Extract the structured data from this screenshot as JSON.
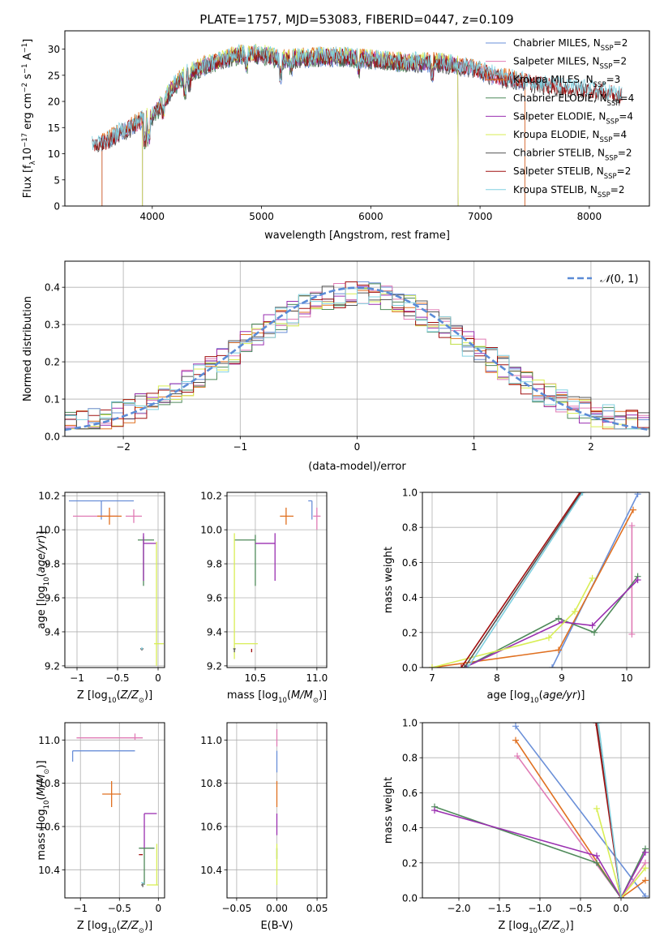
{
  "figure": {
    "title": "PLATE=1757, MJD=53083, FIBERID=0447, z=0.109"
  },
  "series": [
    {
      "key": "c_miles",
      "label": "Chabrier MILES, N",
      "sub": "SSP",
      "suffix": "=2",
      "color": "#6a8fd8"
    },
    {
      "key": "s_miles",
      "label": "Salpeter MILES, N",
      "sub": "SSP",
      "suffix": "=2",
      "color": "#e07bb5"
    },
    {
      "key": "k_miles",
      "label": "Kroupa MILES, N",
      "sub": "SSP",
      "suffix": "=3",
      "color": "#e07020"
    },
    {
      "key": "c_elodie",
      "label": "Chabrier ELODIE, N",
      "sub": "SSP",
      "suffix": "=4",
      "color": "#4f8a5a"
    },
    {
      "key": "s_elodie",
      "label": "Salpeter ELODIE, N",
      "sub": "SSP",
      "suffix": "=4",
      "color": "#9a2fb0"
    },
    {
      "key": "k_elodie",
      "label": "Kroupa ELODIE, N",
      "sub": "SSP",
      "suffix": "=4",
      "color": "#d8ee55"
    },
    {
      "key": "c_stelib",
      "label": "Chabrier STELIB, N",
      "sub": "SSP",
      "suffix": "=2",
      "color": "#555555"
    },
    {
      "key": "s_stelib",
      "label": "Salpeter STELIB, N",
      "sub": "SSP",
      "suffix": "=2",
      "color": "#a01010"
    },
    {
      "key": "k_stelib",
      "label": "Kroupa STELIB, N",
      "sub": "SSP",
      "suffix": "=2",
      "color": "#80d0e0"
    }
  ],
  "chart_data": [
    {
      "id": "spectrum",
      "type": "line",
      "xlabel": "wavelength [Angstrom, rest frame]",
      "ylabel": "Flux [f",
      "xlim": [
        3200,
        8550
      ],
      "ylim": [
        0,
        33.5
      ],
      "xticks": [
        4000,
        5000,
        6000,
        7000,
        8000
      ],
      "yticks": [
        0,
        5,
        10,
        15,
        20,
        25,
        30
      ],
      "legend": "upper-right",
      "continuum": {
        "x": [
          3450,
          3600,
          3700,
          3800,
          3900,
          4000,
          4100,
          4200,
          4300,
          4500,
          4800,
          5000,
          5200,
          5500,
          5800,
          6000,
          6300,
          6600,
          6900,
          7200,
          7500,
          7800,
          8100,
          8300
        ],
        "y": [
          11.5,
          12.5,
          14,
          15,
          16.5,
          17,
          20,
          23,
          25,
          27,
          29,
          29,
          28,
          28.5,
          28.5,
          28,
          27.5,
          27.5,
          26.5,
          24.5,
          23.5,
          22.5,
          22,
          21
        ]
      },
      "ranges": {
        "c_miles": [
          3540,
          7410
        ],
        "s_miles": [
          3540,
          7410
        ],
        "k_miles": [
          3540,
          7410
        ],
        "c_elodie": [
          3910,
          6800
        ],
        "s_elodie": [
          3910,
          6800
        ],
        "k_elodie": [
          3910,
          6800
        ],
        "c_stelib": [
          3450,
          8300
        ],
        "s_stelib": [
          3450,
          8300
        ],
        "k_stelib": [
          3450,
          8300
        ]
      }
    },
    {
      "id": "residuals",
      "type": "histogram",
      "xlabel": "(data-model)/error",
      "ylabel": "Normed distribution",
      "xlim": [
        -2.5,
        2.5
      ],
      "ylim": [
        0,
        0.47
      ],
      "xticks": [
        -2,
        -1,
        0,
        1,
        2
      ],
      "xticklabels": [
        "−2",
        "−1",
        "0",
        "1",
        "2"
      ],
      "yticks": [
        0.0,
        0.1,
        0.2,
        0.3,
        0.4
      ],
      "yticklabels": [
        "0.0",
        "0.1",
        "0.2",
        "0.3",
        "0.4"
      ],
      "bin_width": 0.1,
      "legend_label": "(0, 1)",
      "legend_prefix": "𝒩"
    },
    {
      "id": "age_vs_Z",
      "type": "scatter",
      "xlabel": "Z [log",
      "ylabel": "age  [log",
      "xlim": [
        -1.15,
        0.08
      ],
      "ylim": [
        9.19,
        10.22
      ],
      "xticks": [
        -1,
        -0.5,
        0
      ],
      "xticklabels": [
        "−1",
        "−0.5",
        "0"
      ],
      "yticks": [
        9.2,
        9.4,
        9.6,
        9.8,
        10.0,
        10.2
      ],
      "yticklabels": [
        "9.2",
        "9.4",
        "9.6",
        "9.8",
        "10.0",
        "10.2"
      ],
      "points": [
        {
          "s": "c_miles",
          "x": -0.7,
          "y": 10.17,
          "xl": -1.1,
          "xh": -0.3,
          "yl": 10.06,
          "yh": 10.17
        },
        {
          "s": "s_miles",
          "x": -0.3,
          "y": 10.08,
          "xl": -0.4,
          "xh": -0.2,
          "yl": 10.04,
          "yh": 10.12
        },
        {
          "s": "s_miles",
          "x": -0.6,
          "y": 10.08,
          "xl": -1.05,
          "xh": -0.5,
          "yl": 10.08,
          "yh": 10.08
        },
        {
          "s": "k_miles",
          "x": -0.6,
          "y": 10.08,
          "xl": -0.75,
          "xh": -0.45,
          "yl": 10.03,
          "yh": 10.13
        },
        {
          "s": "c_elodie",
          "x": -0.18,
          "y": 9.94,
          "xl": -0.25,
          "xh": -0.05,
          "yl": 9.67,
          "yh": 9.96
        },
        {
          "s": "s_elodie",
          "x": -0.18,
          "y": 9.92,
          "xl": -0.18,
          "xh": -0.02,
          "yl": 9.7,
          "yh": 9.98
        },
        {
          "s": "k_elodie",
          "x": -0.02,
          "y": 9.33,
          "xl": -0.05,
          "xh": 0.07,
          "yl": 9.2,
          "yh": 9.93
        },
        {
          "s": "c_stelib",
          "x": -0.2,
          "y": 9.3,
          "xl": -0.22,
          "xh": -0.18,
          "yl": 9.29,
          "yh": 9.3
        },
        {
          "s": "k_stelib",
          "x": -0.2,
          "y": 9.3,
          "xl": -0.21,
          "xh": -0.19,
          "yl": 9.3,
          "yh": 9.31
        }
      ]
    },
    {
      "id": "age_vs_mass",
      "type": "scatter",
      "xlabel": "mass [log",
      "xlim": [
        10.27,
        11.08
      ],
      "ylim": [
        9.19,
        10.22
      ],
      "xticks": [
        10.5,
        11.0
      ],
      "xticklabels": [
        "10.5",
        "11.0"
      ],
      "yticks": [
        9.2,
        9.4,
        9.6,
        9.8,
        10.0,
        10.2
      ],
      "yticklabels": [
        "9.2",
        "9.4",
        "9.6",
        "9.8",
        "10.0",
        "10.2"
      ],
      "points": [
        {
          "s": "c_miles",
          "x": 10.96,
          "y": 10.17,
          "xl": 10.93,
          "xh": 10.96,
          "yl": 10.06,
          "yh": 10.17
        },
        {
          "s": "s_miles",
          "x": 11.0,
          "y": 10.08,
          "xl": 10.97,
          "xh": 11.03,
          "yl": 10.0,
          "yh": 10.13
        },
        {
          "s": "k_miles",
          "x": 10.75,
          "y": 10.08,
          "xl": 10.7,
          "xh": 10.81,
          "yl": 10.03,
          "yh": 10.13
        },
        {
          "s": "c_elodie",
          "x": 10.5,
          "y": 9.94,
          "xl": 10.33,
          "xh": 10.5,
          "yl": 9.67,
          "yh": 9.97
        },
        {
          "s": "s_elodie",
          "x": 10.66,
          "y": 9.92,
          "xl": 10.5,
          "xh": 10.66,
          "yl": 9.7,
          "yh": 9.98
        },
        {
          "s": "k_elodie",
          "x": 10.33,
          "y": 9.33,
          "xl": 10.33,
          "xh": 10.52,
          "yl": 9.24,
          "yh": 9.98
        },
        {
          "s": "c_stelib",
          "x": 10.33,
          "y": 9.3,
          "xl": 10.32,
          "xh": 10.34,
          "yl": 9.28,
          "yh": 9.3
        },
        {
          "s": "s_stelib",
          "x": 10.47,
          "y": 9.3,
          "xl": 10.47,
          "xh": 10.47,
          "yl": 9.28,
          "yh": 9.3
        }
      ]
    },
    {
      "id": "weight_vs_age",
      "type": "line",
      "xlabel": "age  [log",
      "ylabel": "mass weight",
      "xlim": [
        6.85,
        10.35
      ],
      "ylim": [
        0,
        1.0
      ],
      "xticks": [
        7,
        8,
        9,
        10
      ],
      "xticklabels": [
        "7",
        "8",
        "9",
        "10"
      ],
      "yticks": [
        0.0,
        0.2,
        0.4,
        0.6,
        0.8,
        1.0
      ],
      "yticklabels": [
        "0.0",
        "0.2",
        "0.4",
        "0.6",
        "0.8",
        "1.0"
      ],
      "lines": [
        {
          "s": "c_miles",
          "x": [
            8.85,
            10.17
          ],
          "y": [
            0.0,
            0.99
          ]
        },
        {
          "s": "k_miles",
          "x": [
            7.0,
            8.95,
            10.1
          ],
          "y": [
            0.0,
            0.1,
            0.9
          ]
        },
        {
          "s": "s_miles",
          "x": [
            10.08,
            10.08
          ],
          "y": [
            0.19,
            0.81
          ]
        },
        {
          "s": "c_elodie",
          "x": [
            7.5,
            8.95,
            9.5,
            10.17
          ],
          "y": [
            0.0,
            0.28,
            0.2,
            0.52
          ]
        },
        {
          "s": "s_elodie",
          "x": [
            7.5,
            9.0,
            9.47,
            10.17
          ],
          "y": [
            0.0,
            0.26,
            0.24,
            0.5
          ]
        },
        {
          "s": "k_elodie",
          "x": [
            7.0,
            8.8,
            9.2,
            9.47
          ],
          "y": [
            0.0,
            0.17,
            0.32,
            0.51
          ]
        },
        {
          "s": "c_stelib",
          "x": [
            7.5,
            9.3
          ],
          "y": [
            0.0,
            1.0
          ]
        },
        {
          "s": "s_stelib",
          "x": [
            7.45,
            9.28
          ],
          "y": [
            0.0,
            1.0
          ]
        },
        {
          "s": "k_stelib",
          "x": [
            7.55,
            9.32
          ],
          "y": [
            0.0,
            1.0
          ]
        }
      ]
    },
    {
      "id": "mass_vs_Z",
      "type": "scatter",
      "xlabel": "Z [log",
      "ylabel": "mass [log",
      "xlim": [
        -1.2,
        0.08
      ],
      "ylim": [
        10.27,
        11.08
      ],
      "xticks": [
        -1,
        -0.5,
        0
      ],
      "xticklabels": [
        "−1",
        "−0.5",
        "0"
      ],
      "yticks": [
        10.4,
        10.6,
        10.8,
        11.0
      ],
      "yticklabels": [
        "10.4",
        "10.6",
        "10.8",
        "11.0"
      ],
      "points": [
        {
          "s": "c_miles",
          "x": -1.1,
          "y": 10.95,
          "xl": -1.1,
          "xh": -0.3,
          "yl": 10.9,
          "yh": 10.95
        },
        {
          "s": "s_miles",
          "x": -0.3,
          "y": 11.01,
          "xl": -1.05,
          "xh": -0.2,
          "yl": 11.0,
          "yh": 11.03
        },
        {
          "s": "k_miles",
          "x": -0.6,
          "y": 10.75,
          "xl": -0.72,
          "xh": -0.48,
          "yl": 10.69,
          "yh": 10.81
        },
        {
          "s": "c_elodie",
          "x": -0.18,
          "y": 10.5,
          "xl": -0.25,
          "xh": -0.05,
          "yl": 10.33,
          "yh": 10.5
        },
        {
          "s": "s_elodie",
          "x": -0.18,
          "y": 10.66,
          "xl": -0.18,
          "xh": -0.02,
          "yl": 10.5,
          "yh": 10.66
        },
        {
          "s": "k_elodie",
          "x": -0.02,
          "y": 10.33,
          "xl": -0.15,
          "xh": 0.0,
          "yl": 10.33,
          "yh": 10.52
        },
        {
          "s": "c_stelib",
          "x": -0.2,
          "y": 10.33,
          "xl": -0.22,
          "xh": -0.2,
          "yl": 10.32,
          "yh": 10.34
        },
        {
          "s": "s_stelib",
          "x": -0.25,
          "y": 10.47,
          "xl": -0.25,
          "xh": -0.2,
          "yl": 10.47,
          "yh": 10.47
        },
        {
          "s": "k_stelib",
          "x": -0.2,
          "y": 10.34,
          "xl": -0.22,
          "xh": -0.18,
          "yl": 10.34,
          "yh": 10.34
        }
      ]
    },
    {
      "id": "mass_vs_EBV",
      "type": "scatter",
      "xlabel": "E(B-V)",
      "xlim": [
        -0.062,
        0.062
      ],
      "ylim": [
        10.27,
        11.08
      ],
      "xticks": [
        -0.05,
        0.0,
        0.05
      ],
      "xticklabels": [
        "−0.05",
        "0.00",
        "0.05"
      ],
      "yticks": [
        10.4,
        10.6,
        10.8,
        11.0
      ],
      "yticklabels": [
        "10.4",
        "10.6",
        "10.8",
        "11.0"
      ],
      "points": [
        {
          "s": "s_miles",
          "x": 0.0,
          "y": 11.01,
          "xl": 0.0,
          "xh": 0.0,
          "yl": 10.97,
          "yh": 11.05
        },
        {
          "s": "c_miles",
          "x": 0.0,
          "y": 10.95,
          "xl": 0.0,
          "xh": 0.0,
          "yl": 10.85,
          "yh": 10.95
        },
        {
          "s": "k_miles",
          "x": 0.0,
          "y": 10.75,
          "xl": 0.0,
          "xh": 0.0,
          "yl": 10.69,
          "yh": 10.81
        },
        {
          "s": "s_elodie",
          "x": 0.0,
          "y": 10.6,
          "xl": 0.0,
          "xh": 0.0,
          "yl": 10.56,
          "yh": 10.66
        },
        {
          "s": "c_elodie",
          "x": 0.0,
          "y": 10.5,
          "xl": 0.0,
          "xh": 0.0,
          "yl": 10.45,
          "yh": 10.5
        },
        {
          "s": "k_elodie",
          "x": 0.0,
          "y": 10.4,
          "xl": 0.0,
          "xh": 0.0,
          "yl": 10.33,
          "yh": 10.52
        }
      ]
    },
    {
      "id": "weight_vs_Z",
      "type": "line",
      "xlabel": "Z [log",
      "ylabel": "mass weight",
      "xlim": [
        -2.45,
        0.35
      ],
      "ylim": [
        0,
        1.0
      ],
      "xticks": [
        -2.0,
        -1.5,
        -1.0,
        -0.5,
        0.0
      ],
      "xticklabels": [
        "−2.0",
        "−1.5",
        "−1.0",
        "−0.5",
        "0.0"
      ],
      "yticks": [
        0.0,
        0.2,
        0.4,
        0.6,
        0.8,
        1.0
      ],
      "yticklabels": [
        "0.0",
        "0.2",
        "0.4",
        "0.6",
        "0.8",
        "1.0"
      ],
      "lines": [
        {
          "s": "c_miles",
          "x": [
            -1.3,
            0.3
          ],
          "y": [
            0.98,
            0.01
          ]
        },
        {
          "s": "k_miles",
          "x": [
            -1.3,
            0.0,
            0.3
          ],
          "y": [
            0.9,
            0.0,
            0.1
          ]
        },
        {
          "s": "s_miles",
          "x": [
            -1.28,
            0.0,
            0.3
          ],
          "y": [
            0.81,
            0.0,
            0.2
          ]
        },
        {
          "s": "c_elodie",
          "x": [
            -2.3,
            -0.3,
            0.0,
            0.3
          ],
          "y": [
            0.52,
            0.2,
            0.0,
            0.28
          ]
        },
        {
          "s": "s_elodie",
          "x": [
            -2.3,
            -0.3,
            0.0,
            0.3
          ],
          "y": [
            0.5,
            0.24,
            0.0,
            0.26
          ]
        },
        {
          "s": "k_elodie",
          "x": [
            -0.3,
            0.0,
            0.3
          ],
          "y": [
            0.51,
            0.0,
            0.17
          ]
        },
        {
          "s": "c_stelib",
          "x": [
            -0.3,
            0.0
          ],
          "y": [
            1.0,
            0.0
          ]
        },
        {
          "s": "s_stelib",
          "x": [
            -0.31,
            0.0
          ],
          "y": [
            1.0,
            0.0
          ]
        },
        {
          "s": "k_stelib",
          "x": [
            -0.28,
            0.0
          ],
          "y": [
            1.0,
            0.0
          ]
        }
      ]
    }
  ]
}
